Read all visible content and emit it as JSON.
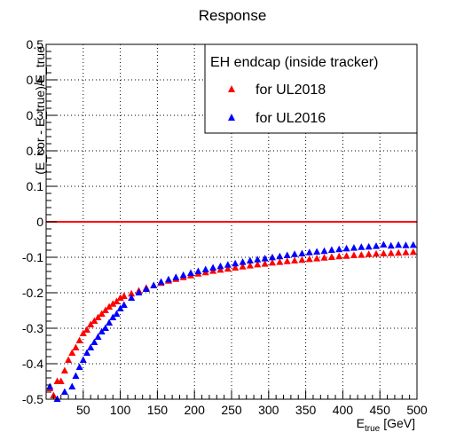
{
  "chart_data": {
    "type": "scatter",
    "title": "Response",
    "xlabel": {
      "main": "E",
      "sub": "true",
      "unit": "[GeV]"
    },
    "ylabel": "(E_cor - E_true)/E_true",
    "xlim": [
      0,
      500
    ],
    "ylim": [
      -0.5,
      0.5
    ],
    "grid": true,
    "legend": {
      "placement": "top-right",
      "header": "EH endcap (inside tracker)",
      "entries": [
        "for UL2018",
        "for UL2016"
      ]
    },
    "x_ticks": [
      50,
      100,
      150,
      200,
      250,
      300,
      350,
      400,
      450,
      500
    ],
    "y_ticks": [
      -0.5,
      -0.4,
      -0.3,
      -0.2,
      -0.1,
      0,
      0.1,
      0.2,
      0.3,
      0.4,
      0.5
    ],
    "y_tick_labels": [
      "-0.5",
      "-0.4",
      "-0.3",
      "-0.2",
      "-0.1",
      "0",
      "0.1",
      "0.2",
      "0.3",
      "0.4",
      "0.5"
    ],
    "reference_line": {
      "y": 0,
      "color": "#ff0000"
    },
    "series": [
      {
        "name": "for UL2018",
        "color": "#ff0000",
        "marker": "triangle",
        "points": [
          [
            5,
            -0.47
          ],
          [
            10,
            -0.49
          ],
          [
            15,
            -0.45
          ],
          [
            20,
            -0.45
          ],
          [
            25,
            -0.42
          ],
          [
            30,
            -0.39
          ],
          [
            35,
            -0.37
          ],
          [
            40,
            -0.355
          ],
          [
            45,
            -0.335
          ],
          [
            50,
            -0.315
          ],
          [
            55,
            -0.305
          ],
          [
            60,
            -0.29
          ],
          [
            65,
            -0.28
          ],
          [
            70,
            -0.27
          ],
          [
            75,
            -0.26
          ],
          [
            80,
            -0.25
          ],
          [
            85,
            -0.24
          ],
          [
            90,
            -0.232
          ],
          [
            95,
            -0.225
          ],
          [
            100,
            -0.215
          ],
          [
            105,
            -0.21
          ],
          [
            115,
            -0.203
          ],
          [
            125,
            -0.195
          ],
          [
            135,
            -0.187
          ],
          [
            145,
            -0.18
          ],
          [
            155,
            -0.173
          ],
          [
            165,
            -0.167
          ],
          [
            175,
            -0.162
          ],
          [
            185,
            -0.157
          ],
          [
            195,
            -0.152
          ],
          [
            205,
            -0.147
          ],
          [
            215,
            -0.143
          ],
          [
            225,
            -0.139
          ],
          [
            235,
            -0.136
          ],
          [
            245,
            -0.133
          ],
          [
            255,
            -0.13
          ],
          [
            265,
            -0.127
          ],
          [
            275,
            -0.124
          ],
          [
            285,
            -0.121
          ],
          [
            295,
            -0.119
          ],
          [
            305,
            -0.116
          ],
          [
            315,
            -0.114
          ],
          [
            325,
            -0.112
          ],
          [
            335,
            -0.11
          ],
          [
            345,
            -0.108
          ],
          [
            355,
            -0.106
          ],
          [
            365,
            -0.104
          ],
          [
            375,
            -0.102
          ],
          [
            385,
            -0.1
          ],
          [
            395,
            -0.098
          ],
          [
            405,
            -0.097
          ],
          [
            415,
            -0.095
          ],
          [
            425,
            -0.094
          ],
          [
            435,
            -0.092
          ],
          [
            445,
            -0.091
          ],
          [
            455,
            -0.09
          ],
          [
            465,
            -0.089
          ],
          [
            475,
            -0.088
          ],
          [
            485,
            -0.087
          ],
          [
            495,
            -0.086
          ]
        ]
      },
      {
        "name": "for UL2016",
        "color": "#0000ff",
        "marker": "triangle",
        "points": [
          [
            5,
            -0.465
          ],
          [
            15,
            -0.5
          ],
          [
            25,
            -0.48
          ],
          [
            35,
            -0.465
          ],
          [
            40,
            -0.435
          ],
          [
            45,
            -0.41
          ],
          [
            50,
            -0.39
          ],
          [
            55,
            -0.37
          ],
          [
            60,
            -0.355
          ],
          [
            65,
            -0.34
          ],
          [
            70,
            -0.325
          ],
          [
            75,
            -0.31
          ],
          [
            80,
            -0.3
          ],
          [
            85,
            -0.285
          ],
          [
            90,
            -0.27
          ],
          [
            95,
            -0.26
          ],
          [
            100,
            -0.245
          ],
          [
            105,
            -0.235
          ],
          [
            115,
            -0.215
          ],
          [
            125,
            -0.2
          ],
          [
            135,
            -0.19
          ],
          [
            145,
            -0.18
          ],
          [
            155,
            -0.17
          ],
          [
            165,
            -0.163
          ],
          [
            175,
            -0.157
          ],
          [
            185,
            -0.151
          ],
          [
            195,
            -0.145
          ],
          [
            205,
            -0.14
          ],
          [
            215,
            -0.135
          ],
          [
            225,
            -0.13
          ],
          [
            235,
            -0.126
          ],
          [
            245,
            -0.122
          ],
          [
            255,
            -0.118
          ],
          [
            265,
            -0.114
          ],
          [
            275,
            -0.11
          ],
          [
            285,
            -0.107
          ],
          [
            295,
            -0.104
          ],
          [
            305,
            -0.101
          ],
          [
            315,
            -0.098
          ],
          [
            325,
            -0.095
          ],
          [
            335,
            -0.092
          ],
          [
            345,
            -0.09
          ],
          [
            355,
            -0.087
          ],
          [
            365,
            -0.085
          ],
          [
            375,
            -0.083
          ],
          [
            385,
            -0.08
          ],
          [
            395,
            -0.078
          ],
          [
            405,
            -0.076
          ],
          [
            415,
            -0.074
          ],
          [
            425,
            -0.072
          ],
          [
            435,
            -0.071
          ],
          [
            445,
            -0.069
          ],
          [
            455,
            -0.065
          ],
          [
            465,
            -0.068
          ],
          [
            475,
            -0.066
          ],
          [
            485,
            -0.067
          ],
          [
            495,
            -0.066
          ]
        ]
      }
    ]
  }
}
